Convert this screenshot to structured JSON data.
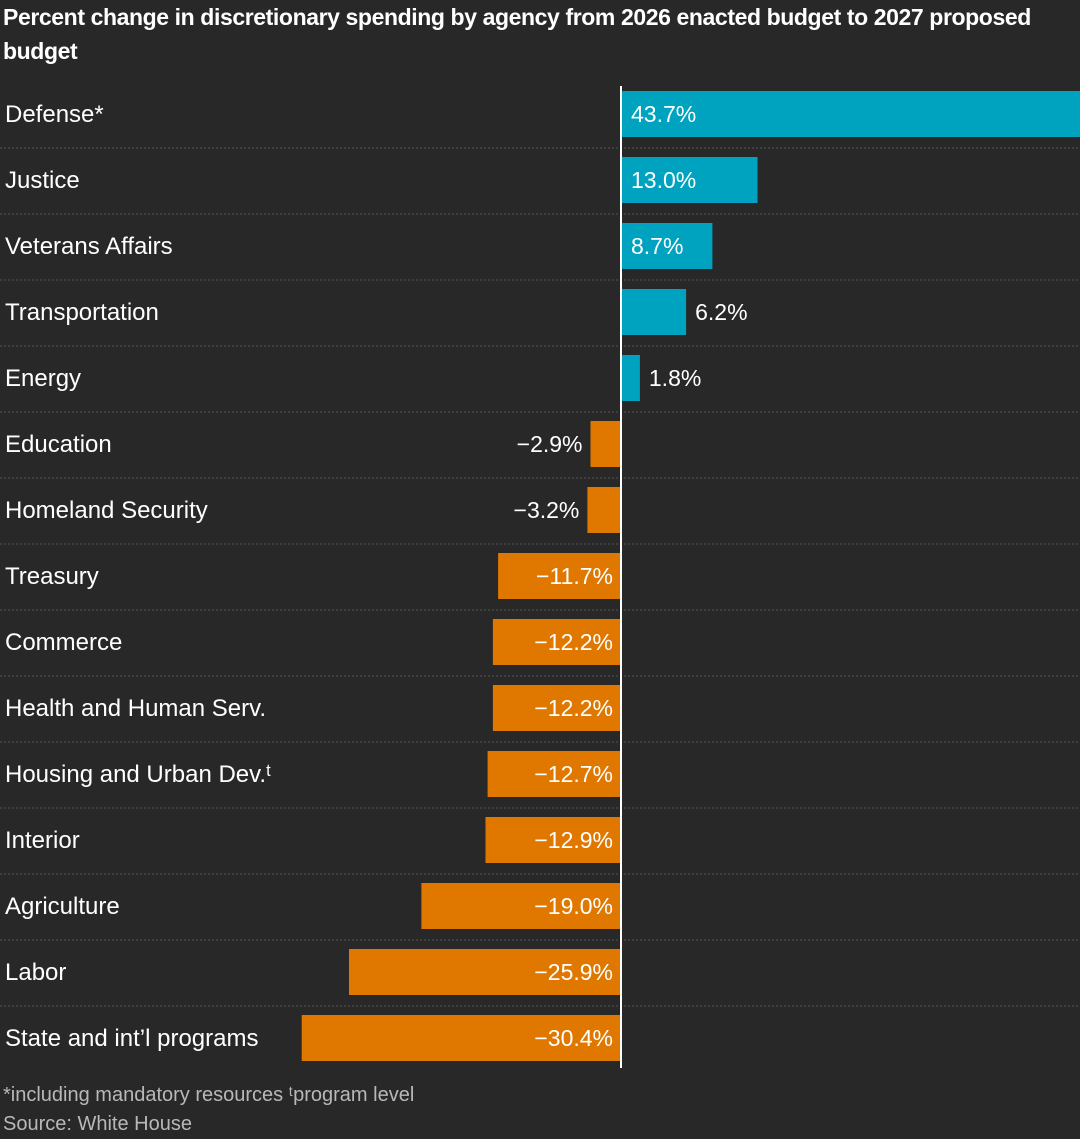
{
  "chart_data": {
    "type": "bar",
    "orientation": "horizontal",
    "title": "Percent change in discretionary spending by agency from 2026 enacted budget to 2027 proposed budget",
    "categories": [
      "Defense*",
      "Justice",
      "Veterans Affairs",
      "Transportation",
      "Energy",
      "Education",
      "Homeland Security",
      "Treasury",
      "Commerce",
      "Health and Human Serv.",
      "Housing and Urban Dev.ᵗ",
      "Interior",
      "Agriculture",
      "Labor",
      "State and int’l programs"
    ],
    "values": [
      43.7,
      13.0,
      8.7,
      6.2,
      1.8,
      -2.9,
      -3.2,
      -11.7,
      -12.2,
      -12.2,
      -12.7,
      -12.9,
      -19.0,
      -25.9,
      -30.4
    ],
    "labels": [
      "43.7%",
      "13.0%",
      "8.7%",
      "6.2%",
      "1.8%",
      "−2.9%",
      "−3.2%",
      "−11.7%",
      "−12.2%",
      "−12.2%",
      "−12.7%",
      "−12.9%",
      "−19.0%",
      "−25.9%",
      "−30.4%"
    ],
    "colors": {
      "positive": "#00a3bf",
      "negative": "#e07800",
      "background": "#282828",
      "baseline": "#ffffff",
      "gridline": "#555555"
    },
    "xlabel": "",
    "ylabel": "",
    "xlim": [
      -30.4,
      43.7
    ]
  },
  "footnote": {
    "note": "*including mandatory resources ᵗprogram level",
    "source": "Source: White House"
  }
}
